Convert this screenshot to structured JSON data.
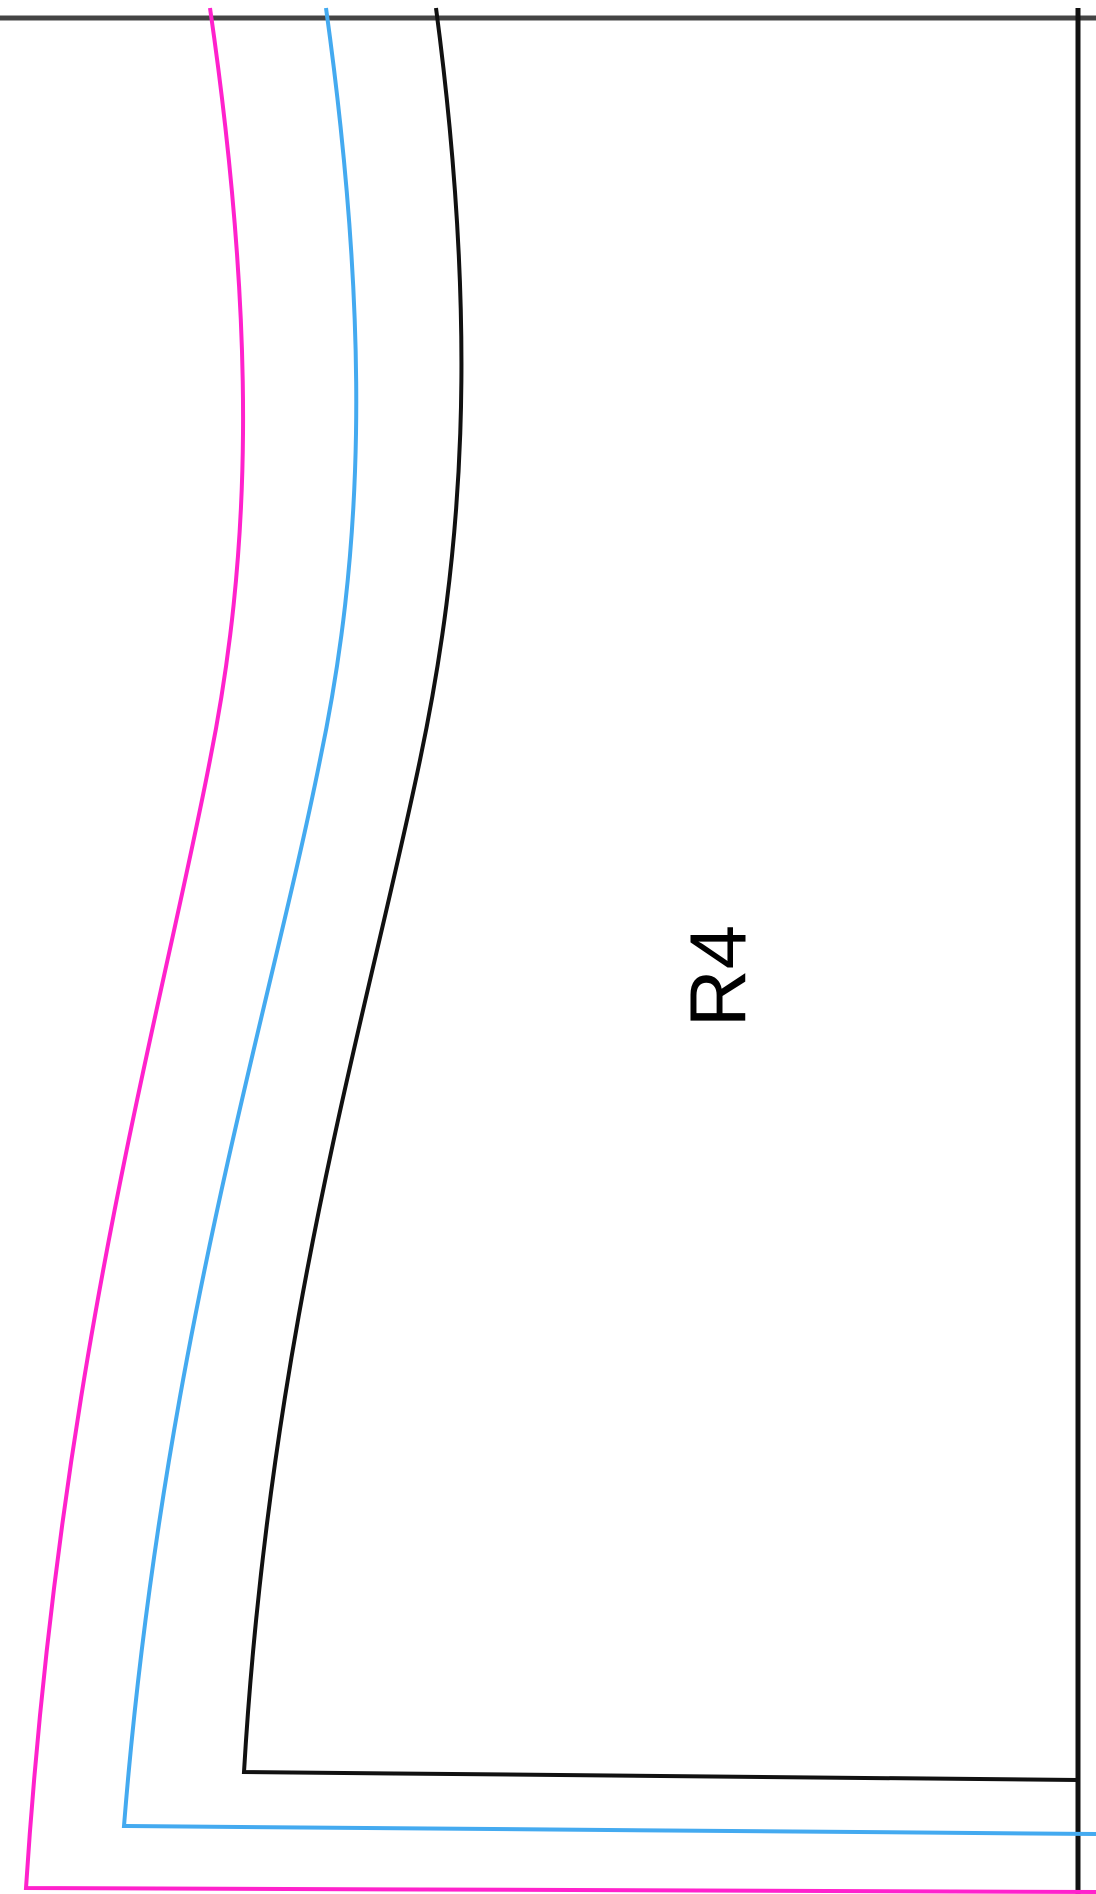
{
  "pattern": {
    "region_label": "R4",
    "colors": {
      "cut_line": "#ff22cc",
      "seam_line": "#44aaf0",
      "stitch_line": "#111111",
      "frame": "#444444",
      "background": "#ffffff"
    }
  }
}
